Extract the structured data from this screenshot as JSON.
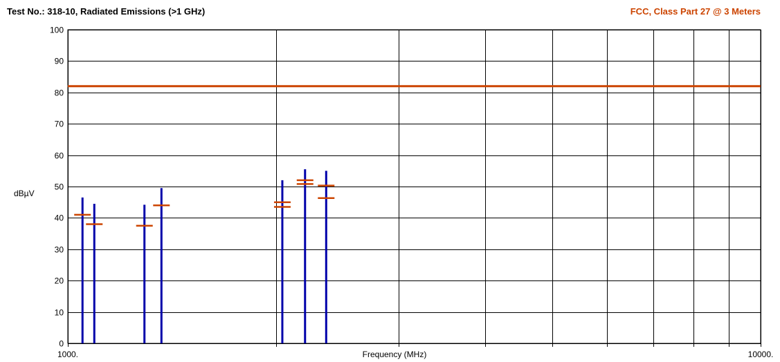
{
  "header": {
    "title": "Test No.: 318-10, Radiated Emissions (>1 GHz)",
    "limit_title": "FCC, Class Part 27 @ 3 Meters",
    "limit_color": "#cc4400"
  },
  "chart_data": {
    "type": "bar",
    "title": "Test No.: 318-10, Radiated Emissions (>1 GHz)",
    "subtitle": "FCC, Class Part 27 @ 3 Meters",
    "xlabel": "Frequency (MHz)",
    "ylabel": "dBµV",
    "x_scale": "log",
    "xlim": [
      1000,
      10000
    ],
    "ylim": [
      0,
      100
    ],
    "y_ticks": [
      0,
      10,
      20,
      30,
      40,
      50,
      60,
      70,
      80,
      90,
      100
    ],
    "x_tick_labels": [
      {
        "value": 1000,
        "label": "1000."
      },
      {
        "value": 10000,
        "label": "10000."
      }
    ],
    "x_gridlines": [
      1000,
      2000,
      3000,
      4000,
      5000,
      6000,
      7000,
      8000,
      9000,
      10000
    ],
    "grid": true,
    "limit_line": {
      "value": 82,
      "color": "#cc4400"
    },
    "emission_color": "#0000aa",
    "marker_color": "#cc4400",
    "emissions": [
      {
        "freq": 1050,
        "peak": 46.5,
        "markers": [
          41
        ]
      },
      {
        "freq": 1092,
        "peak": 44.5,
        "markers": [
          38
        ]
      },
      {
        "freq": 1290,
        "peak": 44.2,
        "markers": [
          37.5
        ]
      },
      {
        "freq": 1365,
        "peak": 49.5,
        "markers": [
          44
        ]
      },
      {
        "freq": 2040,
        "peak": 52,
        "markers": [
          45,
          43.5
        ]
      },
      {
        "freq": 2200,
        "peak": 55.5,
        "markers": [
          52,
          50.8
        ]
      },
      {
        "freq": 2360,
        "peak": 55,
        "markers": [
          50.3,
          46.3
        ]
      }
    ]
  }
}
